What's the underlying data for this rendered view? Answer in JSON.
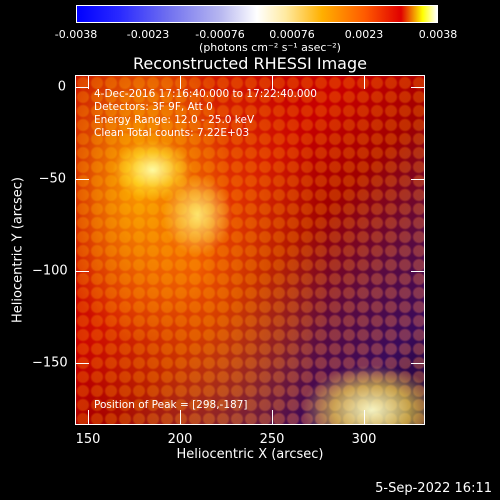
{
  "colorbar": {
    "ticks": [
      "-0.0038",
      "-0.0023",
      "-0.00076",
      "0.00076",
      "0.0023",
      "0.0038"
    ],
    "unit": "(photons cm⁻² s⁻¹ asec⁻²)"
  },
  "annotations": {
    "time_range": "4-Dec-2016 17:16:40.000 to 17:22:40.000",
    "detectors": "Detectors: 3F 9F, Att 0",
    "energy": "Energy Range: 12.0 - 25.0 keV",
    "clean": "Clean     Total counts: 7.22E+03",
    "peak": "Position of Peak = [298,-187]"
  },
  "timestamp": "5-Sep-2022 16:11",
  "chart_data": {
    "type": "heatmap",
    "title": "Reconstructed RHESSI Image",
    "xlabel": "Heliocentric X (arcsec)",
    "ylabel": "Heliocentric Y (arcsec)",
    "xlim": [
      145,
      335
    ],
    "ylim": [
      -187,
      3
    ],
    "xticks": [
      150,
      200,
      250,
      300
    ],
    "yticks": [
      0,
      -50,
      -100,
      -150
    ],
    "xtick_labels": [
      "150",
      "200",
      "250",
      "300"
    ],
    "ytick_labels": [
      "0",
      "−50",
      "−100",
      "−150"
    ],
    "color_range": [
      -0.0038,
      0.0038
    ],
    "peak": [
      298,
      -187
    ],
    "colors": {
      "background": "#000000",
      "foreground": "#ffffff"
    }
  }
}
